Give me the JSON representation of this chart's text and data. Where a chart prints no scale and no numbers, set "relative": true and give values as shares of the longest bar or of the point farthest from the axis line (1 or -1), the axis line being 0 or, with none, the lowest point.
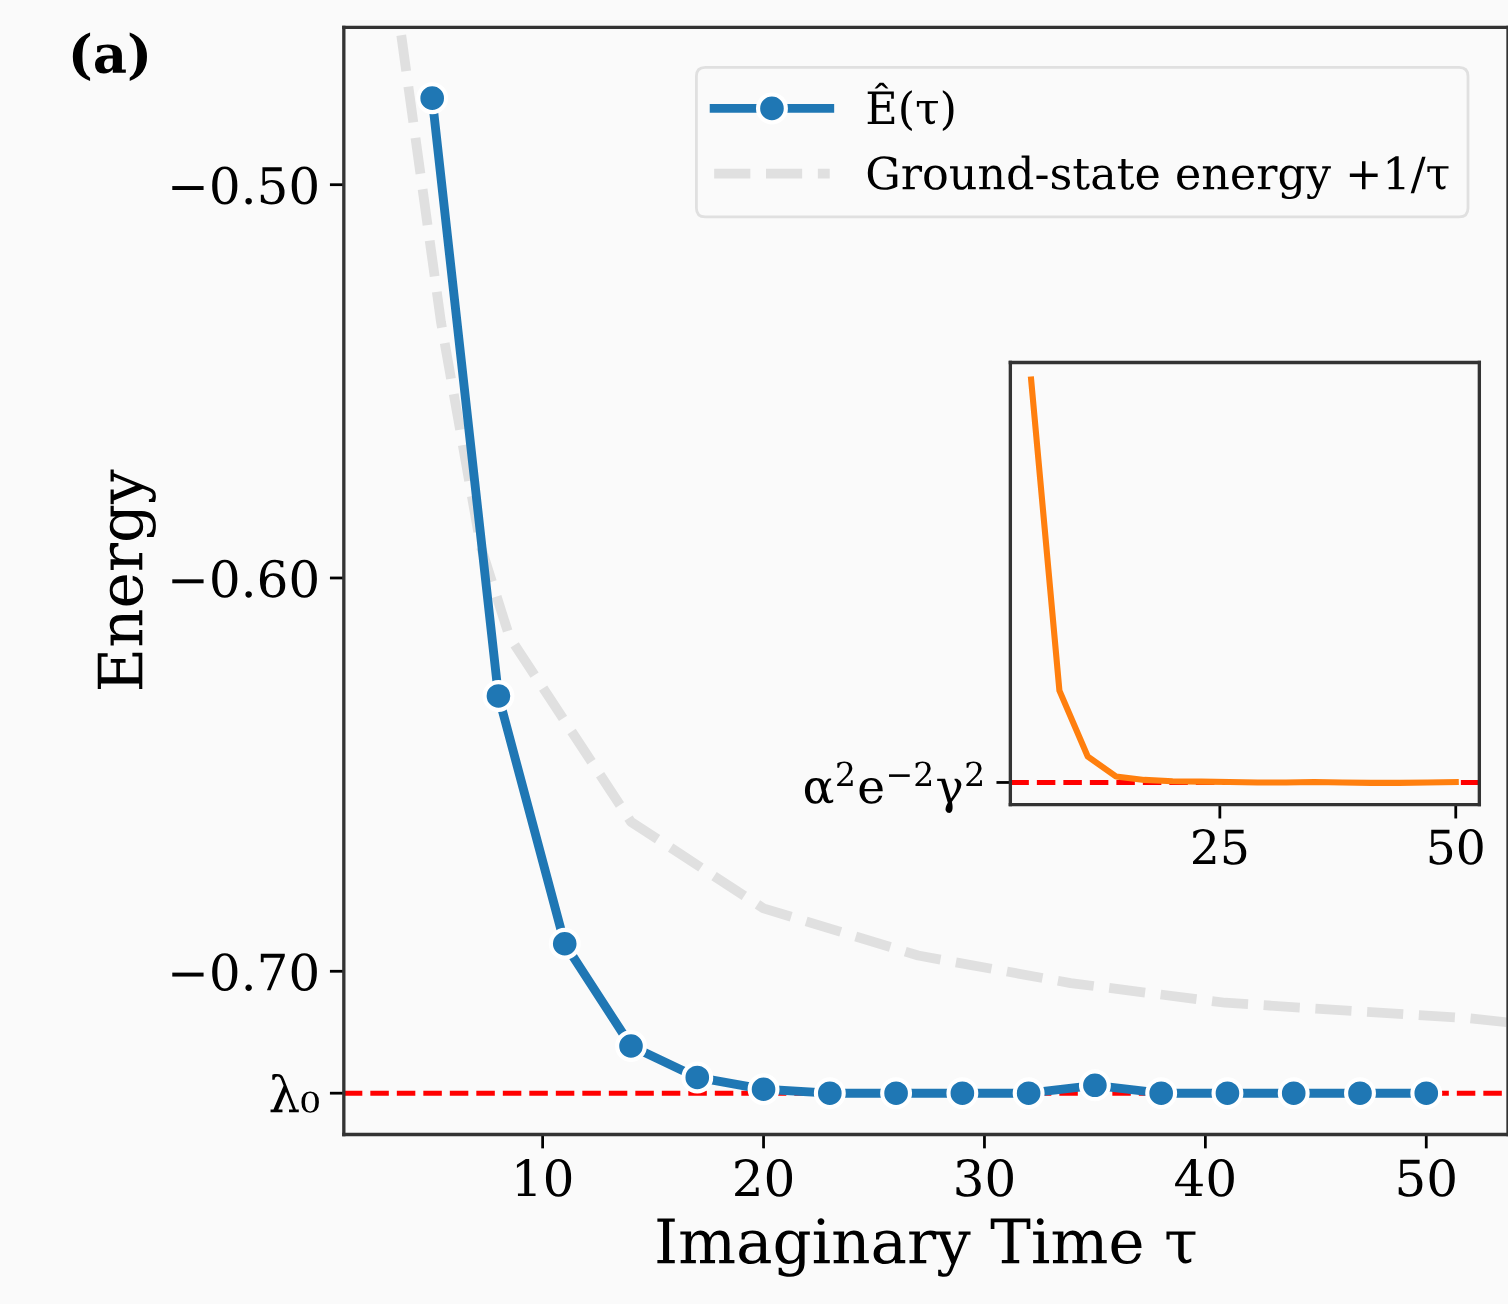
{
  "chart_data": [
    {
      "type": "line",
      "xlabel": "Imaginary Time τ",
      "ylabel": "Energy",
      "annotations": [
        "(a)"
      ],
      "xlim": [
        1,
        53.7
      ],
      "ylim": [
        -0.7415,
        -0.46
      ],
      "xticks": [
        10,
        20,
        30,
        40,
        50
      ],
      "yticks": [
        {
          "value": -0.5,
          "label": "−0.50"
        },
        {
          "value": -0.6,
          "label": "−0.60"
        },
        {
          "value": -0.7,
          "label": "−0.70"
        },
        {
          "value": -0.731,
          "label": "λ₀"
        }
      ],
      "legend": "top right",
      "series": [
        {
          "name": "Ê(τ)",
          "color": "#1f77b4",
          "marker": "circle",
          "line_style": "solid",
          "x": [
            5,
            8,
            11,
            14,
            17,
            20,
            23,
            26,
            29,
            32,
            35,
            38,
            41,
            44,
            47,
            50
          ],
          "values": [
            -0.478,
            -0.63,
            -0.693,
            -0.719,
            -0.727,
            -0.73,
            -0.731,
            -0.731,
            -0.731,
            -0.731,
            -0.729,
            -0.731,
            -0.731,
            -0.731,
            -0.731,
            -0.731
          ]
        },
        {
          "name": "Ground-state energy +1/τ",
          "color": "#e0e0e0",
          "marker": "none",
          "line_style": "dashed",
          "x": [
            3.6,
            5.4,
            7.2,
            8.5,
            14,
            20,
            27,
            33.9,
            40.9,
            52,
            53.7
          ],
          "values": [
            -0.462,
            -0.535,
            -0.592,
            -0.615,
            -0.662,
            -0.684,
            -0.696,
            -0.703,
            -0.708,
            -0.712,
            -0.713
          ]
        }
      ],
      "ref_lines": [
        {
          "axis": "y",
          "value": -0.731,
          "color": "#ff0000",
          "line_style": "dashed"
        }
      ]
    },
    {
      "type": "line",
      "relative": true,
      "xlim": [
        2.8,
        52.5
      ],
      "xticks": [
        25,
        50
      ],
      "series": [
        {
          "color": "#ff7f0e",
          "marker": "none",
          "line_style": "solid",
          "x": [
            5,
            8,
            11,
            14,
            17,
            20,
            23,
            26,
            29,
            32,
            35,
            38,
            41,
            44,
            47,
            50
          ],
          "values": [
            1,
            0.268,
            0.113,
            0.066,
            0.058,
            0.055,
            0.054,
            0.053,
            0.052,
            0.052,
            0.053,
            0.052,
            0.051,
            0.051,
            0.052,
            0.053
          ]
        }
      ],
      "ref_lines": [
        {
          "axis": "y",
          "value": 0.052,
          "label": "α$^{2}$e$^{−2}$γ$^{2}$",
          "color": "#ff0000",
          "line_style": "dashed"
        }
      ]
    }
  ]
}
